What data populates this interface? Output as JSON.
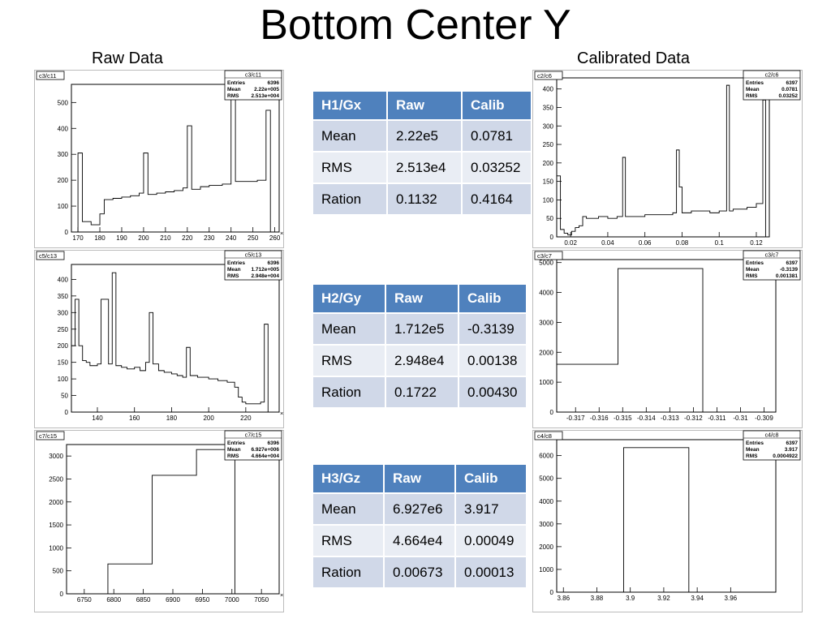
{
  "page": {
    "title": "Bottom Center Y",
    "left_heading": "Raw Data",
    "right_heading": "Calibrated Data"
  },
  "tables": [
    {
      "header": [
        "H1/Gx",
        "Raw",
        "Calib"
      ],
      "rows": [
        [
          "Mean",
          "2.22e5",
          "0.0781"
        ],
        [
          "RMS",
          "2.513e4",
          "0.03252"
        ],
        [
          "Ration",
          "0.1132",
          "0.4164"
        ]
      ]
    },
    {
      "header": [
        "H2/Gy",
        "Raw",
        "Calib"
      ],
      "rows": [
        [
          "Mean",
          "1.712e5",
          "-0.3139"
        ],
        [
          "RMS",
          "2.948e4",
          "0.00138"
        ],
        [
          "Ration",
          "0.1722",
          "0.00430"
        ]
      ]
    },
    {
      "header": [
        "H3/Gz",
        "Raw",
        "Calib"
      ],
      "rows": [
        [
          "Mean",
          "6.927e6",
          "3.917"
        ],
        [
          "RMS",
          "4.664e4",
          "0.00049"
        ],
        [
          "Ration",
          "0.00673",
          "0.00013"
        ]
      ]
    }
  ],
  "chart_data": [
    {
      "type": "histogram-step",
      "canvas": "c3/c11",
      "stats": {
        "name": "c3/c11",
        "rows": [
          [
            "Entries",
            "6396"
          ],
          [
            "Mean",
            "2.22e+005"
          ],
          [
            "RMS",
            "2.513e+004"
          ]
        ]
      },
      "x_scale_label": "×10³",
      "xlim": [
        167,
        262
      ],
      "ylim": [
        0,
        570
      ],
      "xticks": [
        170,
        180,
        190,
        200,
        210,
        220,
        230,
        240,
        250,
        260
      ],
      "yticks": [
        0,
        100,
        200,
        300,
        400,
        500
      ],
      "x": [
        167,
        170,
        172,
        176,
        180,
        182,
        186,
        190,
        194,
        198,
        200,
        202,
        206,
        210,
        214,
        218,
        220,
        222,
        226,
        230,
        236,
        240,
        242,
        244,
        248,
        252,
        256,
        258,
        260
      ],
      "y": [
        0,
        305,
        40,
        28,
        70,
        125,
        130,
        135,
        140,
        150,
        305,
        145,
        150,
        155,
        160,
        170,
        410,
        165,
        175,
        180,
        185,
        530,
        195,
        195,
        195,
        200,
        470,
        0
      ]
    },
    {
      "type": "histogram-step",
      "canvas": "c2/c6",
      "stats": {
        "name": "c2/c6",
        "rows": [
          [
            "Entries",
            "6397"
          ],
          [
            "Mean",
            "0.0781"
          ],
          [
            "RMS",
            "0.03252"
          ]
        ]
      },
      "xlim": [
        0.0125,
        0.127
      ],
      "ylim": [
        0,
        430
      ],
      "xticks": [
        0.02,
        0.04,
        0.06,
        0.08,
        0.1,
        0.12
      ],
      "yticks": [
        0,
        50,
        100,
        150,
        200,
        250,
        300,
        350,
        400
      ],
      "x": [
        0.0125,
        0.0145,
        0.0165,
        0.0185,
        0.0205,
        0.0225,
        0.0245,
        0.0265,
        0.0285,
        0.0305,
        0.035,
        0.04,
        0.045,
        0.048,
        0.0495,
        0.0515,
        0.055,
        0.06,
        0.065,
        0.07,
        0.075,
        0.077,
        0.0785,
        0.08,
        0.085,
        0.09,
        0.095,
        0.1,
        0.104,
        0.1055,
        0.1075,
        0.11,
        0.115,
        0.12,
        0.1235,
        0.125,
        0.127
      ],
      "y": [
        165,
        20,
        10,
        5,
        15,
        25,
        30,
        55,
        50,
        50,
        55,
        50,
        55,
        215,
        55,
        55,
        55,
        60,
        60,
        60,
        65,
        235,
        135,
        65,
        70,
        70,
        65,
        70,
        410,
        70,
        75,
        75,
        80,
        90,
        370,
        0
      ]
    },
    {
      "type": "histogram-step",
      "canvas": "c5/c13",
      "stats": {
        "name": "c5/c13",
        "rows": [
          [
            "Entries",
            "6396"
          ],
          [
            "Mean",
            "1.712e+005"
          ],
          [
            "RMS",
            "2.948e+004"
          ]
        ]
      },
      "x_scale_label": "×10³",
      "xlim": [
        126,
        238
      ],
      "ylim": [
        0,
        445
      ],
      "xticks": [
        140,
        160,
        180,
        200,
        220
      ],
      "yticks": [
        0,
        50,
        100,
        150,
        200,
        250,
        300,
        350,
        400
      ],
      "x": [
        126,
        128,
        130,
        132,
        134,
        136,
        140,
        142,
        146,
        148,
        150,
        153,
        156,
        160,
        163,
        166,
        168,
        170,
        173,
        176,
        180,
        183,
        186,
        188,
        190,
        194,
        200,
        205,
        210,
        214,
        216,
        218,
        220,
        224,
        228,
        230,
        232,
        234
      ],
      "y": [
        200,
        340,
        200,
        155,
        150,
        140,
        145,
        340,
        145,
        420,
        140,
        135,
        130,
        135,
        125,
        150,
        300,
        145,
        125,
        120,
        115,
        110,
        105,
        195,
        110,
        105,
        100,
        95,
        90,
        75,
        45,
        30,
        25,
        25,
        30,
        265,
        0
      ]
    },
    {
      "type": "histogram-step",
      "canvas": "c3/c7",
      "stats": {
        "name": "c3/c7",
        "rows": [
          [
            "Entries",
            "6397"
          ],
          [
            "Mean",
            "-0.3139"
          ],
          [
            "RMS",
            "0.001381"
          ]
        ]
      },
      "xlim": [
        -0.3178,
        -0.3085
      ],
      "ylim": [
        0,
        5100
      ],
      "xticks": [
        -0.317,
        -0.316,
        -0.315,
        -0.314,
        -0.313,
        -0.312,
        -0.311,
        -0.31,
        -0.309
      ],
      "xticklabels": [
        "-0.317",
        "-0.316",
        "-0.315",
        "-0.314",
        "-0.313",
        "-0.312",
        "-0.311",
        "-0.31",
        "-0.309"
      ],
      "yticks": [
        0,
        1000,
        2000,
        3000,
        4000,
        5000
      ],
      "x": [
        -0.3178,
        -0.3152,
        -0.3116
      ],
      "y": [
        1600,
        4800
      ]
    },
    {
      "type": "histogram-step",
      "canvas": "c7/c15",
      "stats": {
        "name": "c7/c15",
        "rows": [
          [
            "Entries",
            "6396"
          ],
          [
            "Mean",
            "6.927e+006"
          ],
          [
            "RMS",
            "4.664e+004"
          ]
        ]
      },
      "x_scale_label": "×10³",
      "xlim": [
        6720,
        7080
      ],
      "ylim": [
        0,
        3250
      ],
      "xticks": [
        6750,
        6800,
        6850,
        6900,
        6950,
        7000,
        7050
      ],
      "yticks": [
        0,
        500,
        1000,
        1500,
        2000,
        2500,
        3000
      ],
      "x": [
        6790,
        6865,
        6940,
        7005
      ],
      "y": [
        650,
        2580,
        3140
      ]
    },
    {
      "type": "histogram-step",
      "canvas": "c4/c8",
      "stats": {
        "name": "c4/c8",
        "rows": [
          [
            "Entries",
            "6397"
          ],
          [
            "Mean",
            "3.917"
          ],
          [
            "RMS",
            "0.0004922"
          ]
        ]
      },
      "xlim": [
        3.856,
        3.987
      ],
      "ylim": [
        0,
        6700
      ],
      "xticks": [
        3.86,
        3.88,
        3.9,
        3.92,
        3.94,
        3.96
      ],
      "xticklabels": [
        "3.86",
        "3.88",
        "3.9",
        "3.92",
        "3.94",
        "3.96"
      ],
      "yticks": [
        0,
        1000,
        2000,
        3000,
        4000,
        5000,
        6000
      ],
      "x": [
        3.896,
        3.935
      ],
      "y": [
        6350
      ]
    }
  ]
}
